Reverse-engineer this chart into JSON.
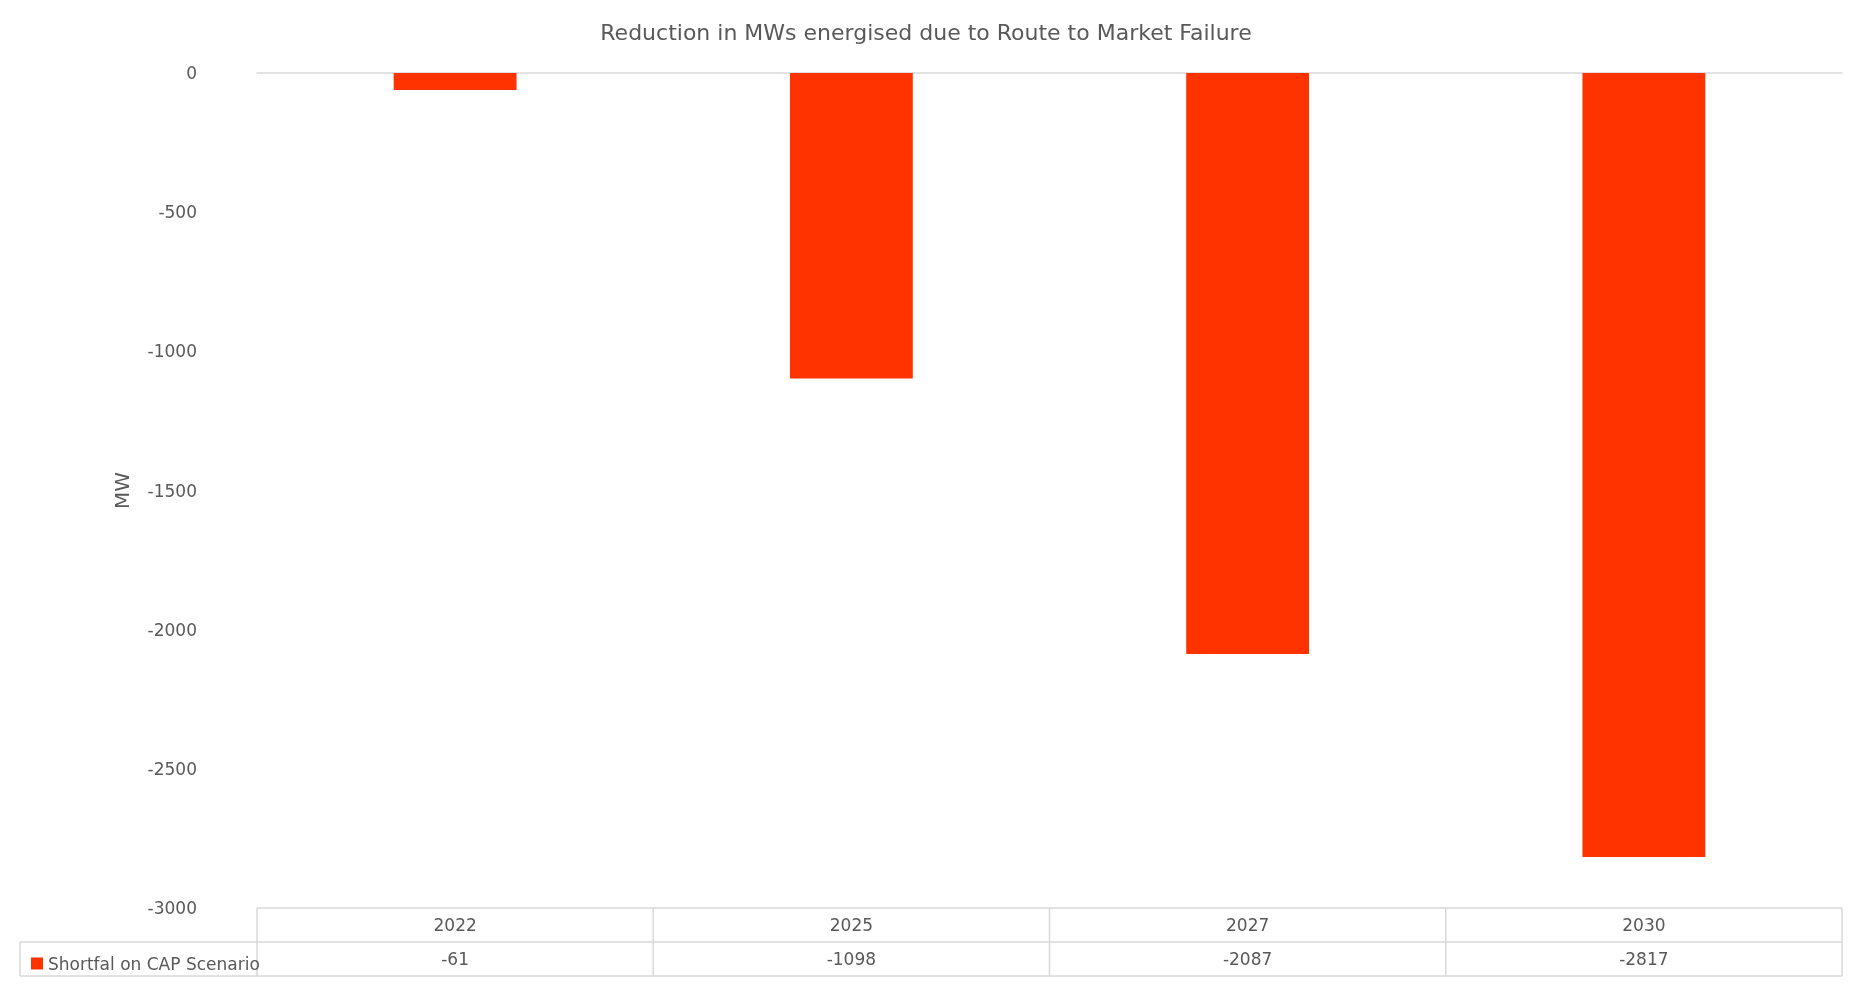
{
  "chart_data": {
    "type": "bar",
    "title": "Reduction in MWs energised due to Route to Market Failure",
    "ylabel": "MW",
    "categories": [
      "2022",
      "2025",
      "2027",
      "2030"
    ],
    "series": [
      {
        "name": "Shortfal on CAP Scenario",
        "color": "#ff3300",
        "values": [
          -61,
          -1098,
          -2087,
          -2817
        ]
      }
    ],
    "ylim": [
      -3000,
      0
    ],
    "yticks": [
      -3000,
      -2500,
      -2000,
      -1500,
      -1000,
      -500,
      0
    ],
    "grid": false,
    "legend": "bottom left",
    "data_labels": true
  }
}
